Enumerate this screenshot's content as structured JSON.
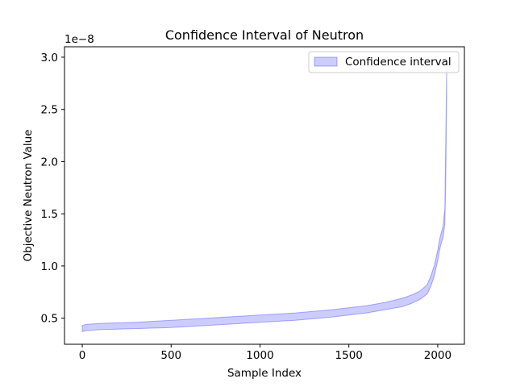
{
  "chart_data": {
    "type": "area",
    "title": "Confidence Interval of Neutron",
    "xlabel": "Sample Index",
    "ylabel": "Objective Neutron Value",
    "y_offset_label": "1e−8",
    "xlim": [
      -100,
      2150
    ],
    "ylim": [
      0.25,
      3.1
    ],
    "x_ticks": [
      0,
      500,
      1000,
      1500,
      2000
    ],
    "x_tick_labels": [
      "0",
      "500",
      "1000",
      "1500",
      "2000"
    ],
    "y_ticks": [
      0.5,
      1.0,
      1.5,
      2.0,
      2.5,
      3.0
    ],
    "y_tick_labels": [
      "0.5",
      "1.0",
      "1.5",
      "2.0",
      "2.5",
      "3.0"
    ],
    "grid": false,
    "legend_position": "upper-right",
    "series": [
      {
        "name": "Confidence interval",
        "color": "#0000ff",
        "fill_opacity": 0.2,
        "x": [
          0,
          20,
          100,
          300,
          500,
          700,
          1000,
          1200,
          1400,
          1600,
          1700,
          1800,
          1850,
          1900,
          1940,
          1960,
          1980,
          2000,
          2010,
          2020,
          2030,
          2040,
          2045,
          2050
        ],
        "lower": [
          0.37,
          0.38,
          0.39,
          0.4,
          0.41,
          0.43,
          0.46,
          0.48,
          0.51,
          0.55,
          0.58,
          0.61,
          0.64,
          0.68,
          0.73,
          0.8,
          0.9,
          1.05,
          1.15,
          1.22,
          1.27,
          1.4,
          1.8,
          2.6
        ],
        "upper": [
          0.43,
          0.44,
          0.45,
          0.46,
          0.48,
          0.5,
          0.53,
          0.55,
          0.58,
          0.62,
          0.65,
          0.69,
          0.72,
          0.76,
          0.82,
          0.9,
          1.0,
          1.15,
          1.25,
          1.32,
          1.38,
          1.55,
          2.2,
          2.9
        ]
      }
    ]
  }
}
